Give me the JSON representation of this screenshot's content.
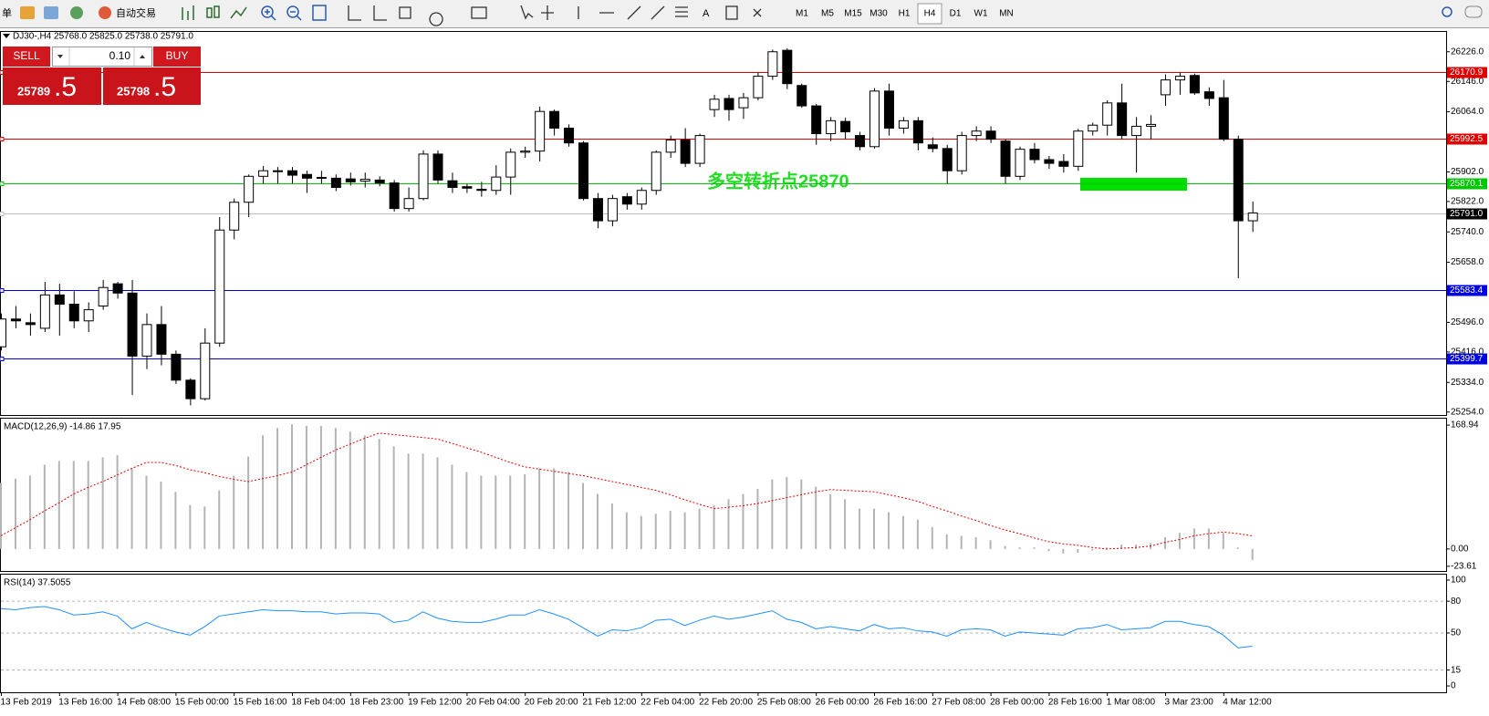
{
  "toolbar": {
    "menu": "单",
    "autotrade": "自动交易",
    "text_tool": "A",
    "timeframes": [
      "M1",
      "M5",
      "M15",
      "M30",
      "H1",
      "H4",
      "D1",
      "W1",
      "MN"
    ]
  },
  "trade_panel": {
    "sell": "SELL",
    "lot": "0.10",
    "buy": "BUY",
    "bid_main": "25789",
    "bid_frac": ".5",
    "ask_main": "25798",
    "ask_frac": ".5"
  },
  "chart_data": [
    {
      "type": "candlestick",
      "title": "DJ30-,H4  25768.0 25825.0 25738.0 25791.0",
      "annotation": "多空转折点25870",
      "categories": [
        "13 Feb 2019",
        null,
        null,
        null,
        "13 Feb 16:00",
        null,
        null,
        null,
        "14 Feb 08:00",
        null,
        null,
        null,
        "15 Feb 00:00",
        null,
        null,
        null,
        "15 Feb 16:00",
        null,
        null,
        null,
        "18 Feb 04:00",
        null,
        null,
        null,
        "18 Feb 23:00",
        null,
        null,
        null,
        "19 Feb 12:00",
        null,
        null,
        null,
        "20 Feb 04:00",
        null,
        null,
        null,
        "20 Feb 20:00",
        null,
        null,
        null,
        "21 Feb 12:00",
        null,
        null,
        null,
        "22 Feb 04:00",
        null,
        null,
        null,
        "22 Feb 20:00",
        null,
        null,
        null,
        "25 Feb 08:00",
        null,
        null,
        null,
        "26 Feb 00:00",
        null,
        null,
        null,
        "26 Feb 16:00",
        null,
        null,
        null,
        "27 Feb 08:00",
        null,
        null,
        null,
        "28 Feb 00:00",
        null,
        null,
        null,
        "28 Feb 16:00",
        null,
        null,
        null,
        "1 Mar 08:00",
        null,
        null,
        null,
        "3 Mar 23:00",
        null,
        null,
        null,
        "4 Mar 12:00",
        null,
        null
      ],
      "open": [
        25430,
        25505,
        25495,
        25480,
        25570,
        25545,
        25500,
        25540,
        25600,
        25575,
        25405,
        25490,
        25410,
        25340,
        25290,
        25440,
        25745,
        25820,
        25890,
        25905,
        25905,
        25895,
        25887,
        25885,
        25883,
        25877,
        25880,
        25872,
        25803,
        25830,
        25950,
        25878,
        25862,
        25855,
        25852,
        25888,
        25955,
        25958,
        26065,
        26020,
        25980,
        25830,
        25770,
        25835,
        25815,
        25852,
        25955,
        25988,
        25925,
        26070,
        26100,
        26075,
        26102,
        26160,
        26230,
        26135,
        26080,
        26005,
        26038,
        26000,
        25970,
        26120,
        26020,
        26040,
        25975,
        25965,
        25905,
        26000,
        26012,
        25985,
        25890,
        25963,
        25935,
        25930,
        25917,
        26012,
        26028,
        26088,
        26000,
        26025,
        26110,
        26150,
        26162,
        26118,
        26102,
        25990,
        25770
      ],
      "high": [
        25520,
        25540,
        25520,
        25605,
        25600,
        25580,
        25550,
        25610,
        25605,
        25610,
        25520,
        25540,
        25420,
        25345,
        25480,
        25780,
        25830,
        25895,
        25918,
        25915,
        25915,
        25905,
        25905,
        25895,
        25900,
        25900,
        25890,
        25880,
        25860,
        25960,
        25960,
        25900,
        25870,
        25875,
        25920,
        25965,
        25970,
        26078,
        26070,
        26030,
        25985,
        25845,
        25840,
        25845,
        25860,
        25960,
        26000,
        26020,
        26005,
        26110,
        26110,
        26115,
        26170,
        26232,
        26235,
        26140,
        26085,
        26050,
        26048,
        26010,
        26128,
        26140,
        26050,
        26050,
        25995,
        25975,
        26010,
        26025,
        26025,
        25990,
        25970,
        25980,
        25945,
        25950,
        26018,
        26035,
        26095,
        26140,
        26050,
        26055,
        26165,
        26170,
        26167,
        26130,
        26150,
        26000,
        25822
      ],
      "low": [
        25420,
        25480,
        25460,
        25470,
        25460,
        25480,
        25470,
        25530,
        25560,
        25300,
        25370,
        25380,
        25330,
        25272,
        25285,
        25430,
        25720,
        25780,
        25870,
        25870,
        25870,
        25845,
        25870,
        25850,
        25865,
        25860,
        25863,
        25795,
        25795,
        25825,
        25870,
        25845,
        25845,
        25835,
        25840,
        25840,
        25940,
        25930,
        26000,
        25970,
        25825,
        25750,
        25755,
        25800,
        25800,
        25840,
        25940,
        25915,
        25915,
        26050,
        26040,
        26045,
        26095,
        26150,
        26125,
        26075,
        25975,
        25985,
        25990,
        25960,
        25965,
        26000,
        26005,
        25960,
        25955,
        25870,
        25895,
        25985,
        25980,
        25870,
        25880,
        25925,
        25910,
        25900,
        25905,
        26000,
        26000,
        25990,
        25900,
        25990,
        26080,
        26110,
        26110,
        26080,
        25985,
        25615,
        25740
      ],
      "close": [
        25505,
        25500,
        25490,
        25570,
        25545,
        25500,
        25530,
        25590,
        25575,
        25405,
        25490,
        25410,
        25340,
        25290,
        25440,
        25745,
        25820,
        25890,
        25905,
        25903,
        25893,
        25885,
        25885,
        25860,
        25875,
        25882,
        25872,
        25803,
        25830,
        25950,
        25880,
        25860,
        25858,
        25852,
        25888,
        25955,
        25958,
        26065,
        26020,
        25980,
        25830,
        25770,
        25830,
        25815,
        25852,
        25955,
        25988,
        25925,
        26000,
        26098,
        26070,
        26102,
        26160,
        26226,
        26140,
        26080,
        26005,
        26040,
        26010,
        25970,
        26120,
        26020,
        26040,
        25980,
        25965,
        25905,
        26000,
        26012,
        25990,
        25890,
        25963,
        25935,
        25925,
        25917,
        26012,
        26028,
        26088,
        26000,
        26025,
        26030,
        26150,
        26160,
        26115,
        26100,
        25990,
        25770,
        25791
      ],
      "up_color": "#ffffff",
      "down_color": "#000000",
      "ylim": [
        25246,
        26282
      ],
      "yticks": [
        {
          "value": 26226,
          "label": "26226.0"
        },
        {
          "value": 26146,
          "label": "26146.0"
        },
        {
          "value": 26064,
          "label": "26064.0"
        },
        {
          "value": 25902,
          "label": "25902.0"
        },
        {
          "value": 25822,
          "label": "25822.0"
        },
        {
          "value": 25740,
          "label": "25740.0"
        },
        {
          "value": 25658,
          "label": "25658.0"
        },
        {
          "value": 25496,
          "label": "25496.0"
        },
        {
          "value": 25416,
          "label": "25416.0"
        },
        {
          "value": 25334,
          "label": "25334.0"
        },
        {
          "value": 25254,
          "label": "25254.0"
        }
      ],
      "levels": [
        {
          "value": 26170.9,
          "color": "#e00000",
          "box_color": "#e00000"
        },
        {
          "value": 25992.5,
          "color": "#e00000",
          "box_color": "#e00000"
        },
        {
          "value": 25870.1,
          "color": "#00c800",
          "box_color": "#00c800"
        },
        {
          "value": 25791.0,
          "label": "25791.0",
          "color": "#c0c0c0",
          "box_color": "#000000"
        },
        {
          "value": 25583.4,
          "color": "#0000e0",
          "box_color": "#0000e0"
        },
        {
          "value": 25399.7,
          "color": "#0000e0",
          "box_color": "#0000e0"
        }
      ]
    },
    {
      "type": "macd",
      "title": "MACD(12,26,9) -14.86 17.95",
      "values": [
        90,
        96,
        100,
        115,
        120,
        120,
        120,
        125,
        128,
        110,
        100,
        92,
        78,
        60,
        58,
        80,
        100,
        126,
        155,
        165,
        170,
        168,
        168,
        165,
        160,
        155,
        150,
        140,
        130,
        130,
        125,
        115,
        105,
        100,
        100,
        100,
        102,
        110,
        110,
        105,
        90,
        75,
        62,
        50,
        45,
        48,
        52,
        50,
        55,
        60,
        68,
        75,
        82,
        95,
        98,
        95,
        85,
        75,
        68,
        55,
        55,
        50,
        45,
        40,
        30,
        20,
        18,
        16,
        12,
        4,
        2,
        2,
        -3,
        -6,
        -5,
        -2,
        2,
        6,
        6,
        8,
        16,
        22,
        28,
        28,
        22,
        2,
        -14.86
      ],
      "signal": [
        18,
        29,
        40,
        52,
        63,
        75,
        84,
        92,
        101,
        110,
        118,
        118,
        114,
        108,
        104,
        99,
        95,
        92,
        96,
        100,
        105,
        115,
        125,
        135,
        143,
        151,
        158,
        156,
        154,
        152,
        150,
        144,
        138,
        132,
        125,
        118,
        112,
        109,
        106,
        103,
        100,
        96,
        92,
        88,
        84,
        80,
        74,
        67,
        61,
        55,
        57,
        59,
        62,
        66,
        70,
        74,
        78,
        81,
        80,
        79,
        78,
        74,
        70,
        65,
        58,
        52,
        45,
        39,
        32,
        26,
        21,
        15,
        10,
        7,
        5,
        2,
        0,
        1,
        2,
        4,
        9,
        13,
        18,
        21,
        23,
        21,
        17.95
      ],
      "color": "#b4b4b4",
      "signal_color": "#e00000",
      "ylim": [
        -30,
        179
      ],
      "yticks": [
        168.94,
        {
          "value": 0,
          "label": "0.00"
        },
        -23.61
      ]
    },
    {
      "type": "rsi",
      "title": "RSI(14) 37.5055",
      "values": [
        73,
        72,
        74,
        75,
        72,
        67,
        68,
        70,
        66,
        54,
        60,
        55,
        51,
        48,
        56,
        66,
        68,
        70,
        72,
        71,
        71,
        70,
        70,
        68,
        69,
        69,
        68,
        60,
        62,
        70,
        64,
        61,
        60,
        60,
        63,
        67,
        67,
        72,
        68,
        63,
        55,
        47,
        53,
        52,
        55,
        62,
        63,
        57,
        62,
        66,
        63,
        65,
        68,
        71,
        63,
        60,
        54,
        56,
        54,
        52,
        58,
        54,
        55,
        52,
        51,
        47,
        53,
        54,
        53,
        47,
        51,
        50,
        49,
        48,
        54,
        55,
        58,
        53,
        54,
        55,
        61,
        61,
        58,
        56,
        48,
        36,
        37.5055
      ],
      "color": "#1e90ff",
      "ylim": [
        -6,
        106
      ],
      "yticks": [
        100,
        80,
        50,
        15,
        0
      ]
    }
  ]
}
